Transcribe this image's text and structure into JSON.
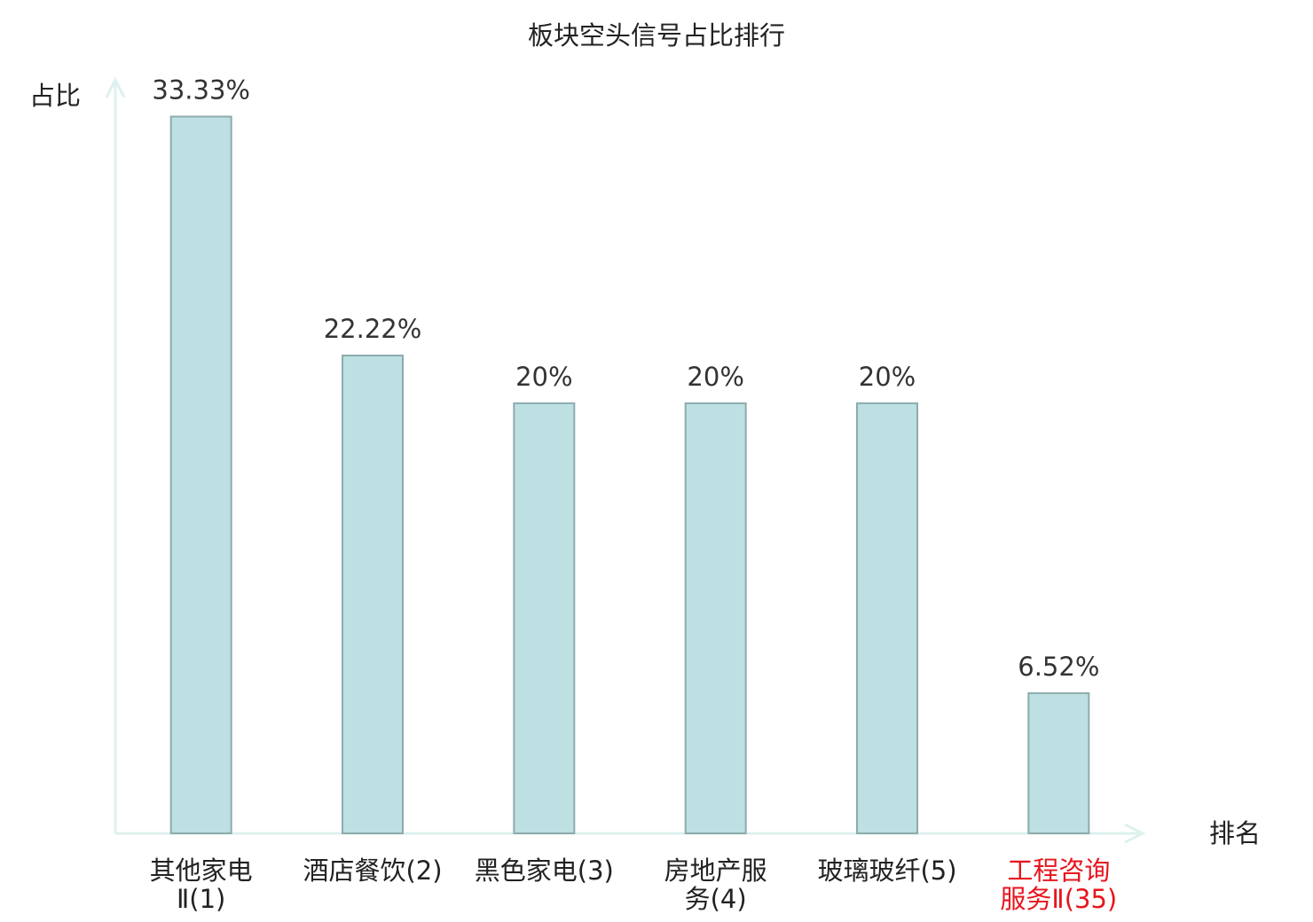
{
  "chart_data": {
    "type": "bar",
    "title": "板块空头信号占比排行",
    "y_label": "占比",
    "x_label": "排名",
    "categories": [
      "其他家电Ⅱ(1)",
      "酒店餐饮(2)",
      "黑色家电(3)",
      "房地产服务(4)",
      "玻璃玻纤(5)",
      "工程咨询服务Ⅱ(35)"
    ],
    "values": [
      33.33,
      22.22,
      20,
      20,
      20,
      6.52
    ],
    "value_labels": [
      "33.33%",
      "22.22%",
      "20%",
      "20%",
      "20%",
      "6.52%"
    ],
    "color": "#bde0e3",
    "edge_color": "#8eabad",
    "category_colors": [
      "#222222",
      "#222222",
      "#222222",
      "#222222",
      "#222222",
      "#e8141c"
    ],
    "ylim": [
      0,
      35
    ]
  }
}
